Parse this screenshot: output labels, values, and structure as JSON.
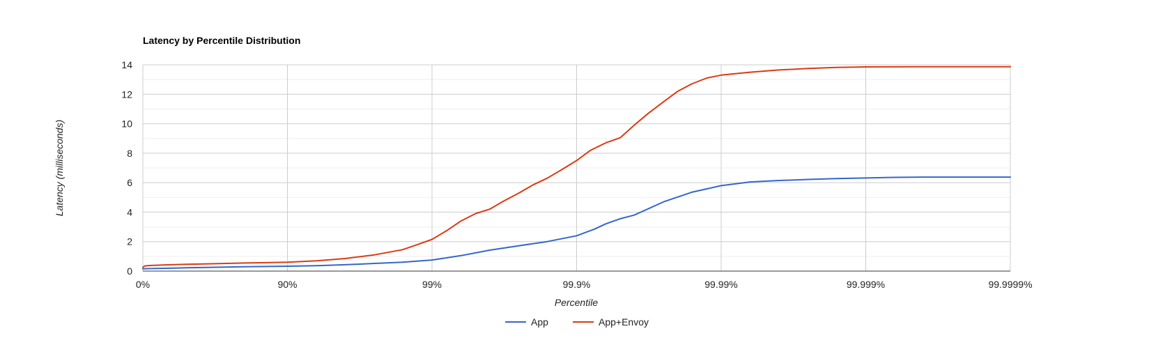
{
  "chart_data": {
    "type": "line",
    "title": "Latency by Percentile Distribution",
    "xlabel": "Percentile",
    "ylabel": "Latency (milliseconds)",
    "x_scale": "nines (log of 1/(1-p))",
    "x_ticks": [
      {
        "value": 0,
        "label": "0%"
      },
      {
        "value": 90,
        "label": "90%"
      },
      {
        "value": 99,
        "label": "99%"
      },
      {
        "value": 99.9,
        "label": "99.9%"
      },
      {
        "value": 99.99,
        "label": "99.99%"
      },
      {
        "value": 99.999,
        "label": "99.999%"
      },
      {
        "value": 99.9999,
        "label": "99.9999%"
      }
    ],
    "y_ticks": [
      {
        "value": 0,
        "label": "0"
      },
      {
        "value": 2,
        "label": "2"
      },
      {
        "value": 4,
        "label": "4"
      },
      {
        "value": 6,
        "label": "6"
      },
      {
        "value": 8,
        "label": "8"
      },
      {
        "value": 10,
        "label": "10"
      },
      {
        "value": 12,
        "label": "12"
      },
      {
        "value": 14,
        "label": "14"
      }
    ],
    "ylim": [
      0,
      14
    ],
    "xlim": [
      0,
      99.9999
    ],
    "grid": true,
    "legend_position": "bottom",
    "series": [
      {
        "name": "App",
        "color": "#3366cc",
        "points": [
          [
            0,
            0.15
          ],
          [
            10,
            0.17
          ],
          [
            30,
            0.19
          ],
          [
            50,
            0.22
          ],
          [
            68.4,
            0.26
          ],
          [
            80,
            0.3
          ],
          [
            90,
            0.33
          ],
          [
            93.7,
            0.37
          ],
          [
            96.0,
            0.43
          ],
          [
            97.5,
            0.52
          ],
          [
            98.4,
            0.6
          ],
          [
            99,
            0.75
          ],
          [
            99.37,
            1.05
          ],
          [
            99.6,
            1.42
          ],
          [
            99.75,
            1.72
          ],
          [
            99.84,
            2.0
          ],
          [
            99.9,
            2.4
          ],
          [
            99.925,
            2.85
          ],
          [
            99.937,
            3.2
          ],
          [
            99.95,
            3.55
          ],
          [
            99.96,
            3.8
          ],
          [
            99.975,
            4.7
          ],
          [
            99.984,
            5.35
          ],
          [
            99.99,
            5.8
          ],
          [
            99.9937,
            6.05
          ],
          [
            99.996,
            6.15
          ],
          [
            99.9975,
            6.22
          ],
          [
            99.9984,
            6.28
          ],
          [
            99.999,
            6.32
          ],
          [
            99.99937,
            6.36
          ],
          [
            99.9996,
            6.38
          ],
          [
            99.9999,
            6.38
          ]
        ]
      },
      {
        "name": "App+Envoy",
        "color": "#dc3912",
        "points": [
          [
            0,
            0.25
          ],
          [
            3,
            0.35
          ],
          [
            10,
            0.38
          ],
          [
            30,
            0.42
          ],
          [
            50,
            0.46
          ],
          [
            68.4,
            0.5
          ],
          [
            80,
            0.55
          ],
          [
            90,
            0.6
          ],
          [
            93.7,
            0.7
          ],
          [
            96.0,
            0.85
          ],
          [
            97.5,
            1.1
          ],
          [
            98.4,
            1.45
          ],
          [
            98.74,
            1.8
          ],
          [
            99,
            2.15
          ],
          [
            99.21,
            2.75
          ],
          [
            99.37,
            3.4
          ],
          [
            99.5,
            3.9
          ],
          [
            99.6,
            4.2
          ],
          [
            99.68,
            4.75
          ],
          [
            99.75,
            5.3
          ],
          [
            99.8,
            5.85
          ],
          [
            99.84,
            6.3
          ],
          [
            99.874,
            6.9
          ],
          [
            99.9,
            7.5
          ],
          [
            99.92,
            8.2
          ],
          [
            99.937,
            8.7
          ],
          [
            99.95,
            9.05
          ],
          [
            99.96,
            9.9
          ],
          [
            99.968,
            10.7
          ],
          [
            99.975,
            11.5
          ],
          [
            99.98,
            12.2
          ],
          [
            99.984,
            12.7
          ],
          [
            99.9874,
            13.1
          ],
          [
            99.99,
            13.3
          ],
          [
            99.9937,
            13.5
          ],
          [
            99.996,
            13.65
          ],
          [
            99.9975,
            13.75
          ],
          [
            99.9984,
            13.82
          ],
          [
            99.999,
            13.86
          ],
          [
            99.9996,
            13.87
          ],
          [
            99.9999,
            13.87
          ]
        ]
      }
    ]
  }
}
